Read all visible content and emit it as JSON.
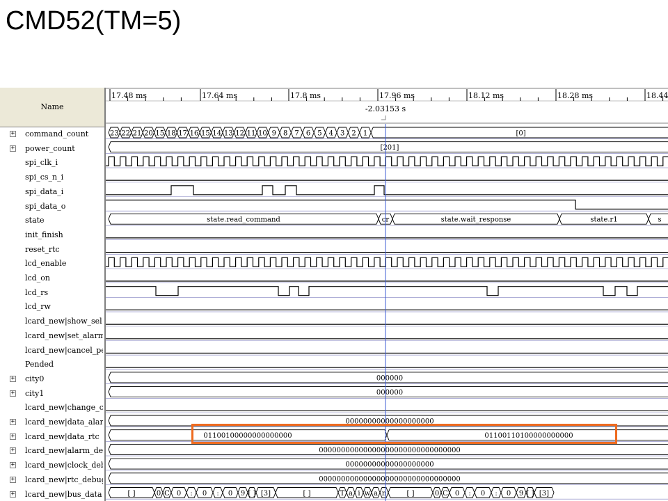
{
  "slide_title": "CMD52(TM=5)",
  "header": {
    "name_label": "Name",
    "ticks": [
      "17.48 ms",
      "17.64 ms",
      "17.8 ms",
      "17.96 ms",
      "18.12 ms",
      "18.28 ms",
      "18.44 ms"
    ],
    "cursor_readout": "-2.03153 s"
  },
  "signals": [
    {
      "name": "command_count",
      "expandable": true,
      "type": "bus",
      "segments": [
        {
          "v": "23"
        },
        {
          "v": "22"
        },
        {
          "v": "21"
        },
        {
          "v": "20"
        },
        {
          "v": "15"
        },
        {
          "v": "18"
        },
        {
          "v": "17"
        },
        {
          "v": "16"
        },
        {
          "v": "15"
        },
        {
          "v": "14"
        },
        {
          "v": "13"
        },
        {
          "v": "12"
        },
        {
          "v": "11"
        },
        {
          "v": "10"
        },
        {
          "v": "9"
        },
        {
          "v": "8"
        },
        {
          "v": "7"
        },
        {
          "v": "6"
        },
        {
          "v": "5"
        },
        {
          "v": "4"
        },
        {
          "v": "3"
        },
        {
          "v": "2"
        },
        {
          "v": "1"
        },
        {
          "v": "[0]"
        }
      ]
    },
    {
      "name": "power_count",
      "expandable": true,
      "type": "bus",
      "segments": [
        {
          "v": "[201]"
        }
      ]
    },
    {
      "name": "spi_clk_i",
      "expandable": false,
      "type": "clock"
    },
    {
      "name": "spi_cs_n_i",
      "expandable": false,
      "type": "low"
    },
    {
      "name": "spi_data_i",
      "expandable": false,
      "type": "pulses"
    },
    {
      "name": "spi_data_o",
      "expandable": false,
      "type": "step"
    },
    {
      "name": "state",
      "expandable": false,
      "type": "bus",
      "segments": [
        {
          "v": "state.read_command"
        },
        {
          "v": "cr"
        },
        {
          "v": "state.wait_response"
        },
        {
          "v": "state.r1"
        },
        {
          "v": "s"
        }
      ]
    },
    {
      "name": "init_finish",
      "expandable": false,
      "type": "low"
    },
    {
      "name": "reset_rtc",
      "expandable": false,
      "type": "low"
    },
    {
      "name": "lcd_enable",
      "expandable": false,
      "type": "clock"
    },
    {
      "name": "lcd_on",
      "expandable": false,
      "type": "low"
    },
    {
      "name": "lcd_rs",
      "expandable": false,
      "type": "dips"
    },
    {
      "name": "lcd_rw",
      "expandable": false,
      "type": "low"
    },
    {
      "name": "lcard_new|show_sel",
      "expandable": false,
      "type": "low"
    },
    {
      "name": "lcard_new|set_alarm",
      "expandable": false,
      "type": "low"
    },
    {
      "name": "lcard_new|cancel_pend",
      "expandable": false,
      "type": "low"
    },
    {
      "name": "Pended",
      "expandable": false,
      "type": "low"
    },
    {
      "name": "city0",
      "expandable": true,
      "type": "bus",
      "segments": [
        {
          "v": "000000"
        }
      ]
    },
    {
      "name": "city1",
      "expandable": true,
      "type": "bus",
      "segments": [
        {
          "v": "000000"
        }
      ]
    },
    {
      "name": "lcard_new|change_city",
      "expandable": false,
      "type": "low"
    },
    {
      "name": "lcard_new|data_alarm",
      "expandable": true,
      "type": "bus",
      "segments": [
        {
          "v": "00000000000000000000"
        }
      ]
    },
    {
      "name": "lcard_new|data_rtc",
      "expandable": true,
      "type": "bus",
      "segments": [
        {
          "v": "01100100000000000000"
        },
        {
          "v": "01100110100000000000"
        }
      ]
    },
    {
      "name": "lcard_new|alarm_debu",
      "expandable": true,
      "type": "bus",
      "segments": [
        {
          "v": "00000000000000000000000000000000"
        }
      ]
    },
    {
      "name": "lcard_new|clock_debu",
      "expandable": true,
      "type": "bus",
      "segments": [
        {
          "v": "00000000000000000000"
        }
      ]
    },
    {
      "name": "lcard_new|rtc_debug",
      "expandable": true,
      "type": "bus",
      "segments": [
        {
          "v": "00000000000000000000000000000000"
        }
      ]
    },
    {
      "name": "lcard_new|bus_data",
      "expandable": true,
      "type": "bus",
      "segments": [
        {
          "v": "[ ]"
        },
        {
          "v": "0"
        },
        {
          "v": "C"
        },
        {
          "v": "0"
        },
        {
          "v": ":"
        },
        {
          "v": "0"
        },
        {
          "v": ":"
        },
        {
          "v": "0"
        },
        {
          "v": "9"
        },
        {
          "v": "[ ]"
        },
        {
          "v": "[3]"
        },
        {
          "v": "[ ]"
        },
        {
          "v": "T"
        },
        {
          "v": "a"
        },
        {
          "v": "i"
        },
        {
          "v": "w"
        },
        {
          "v": "a"
        },
        {
          "v": "n"
        },
        {
          "v": "[ ]"
        },
        {
          "v": "0"
        },
        {
          "v": "C"
        },
        {
          "v": "0"
        },
        {
          "v": ":"
        },
        {
          "v": "0"
        },
        {
          "v": ":"
        },
        {
          "v": "0"
        },
        {
          "v": "9"
        },
        {
          "v": "[ ]"
        },
        {
          "v": "[3]"
        }
      ]
    }
  ],
  "colors": {
    "trace": "#000000",
    "grid": "#000080",
    "cursor": "#3b5bd6",
    "highlight": "#ee6b20"
  }
}
